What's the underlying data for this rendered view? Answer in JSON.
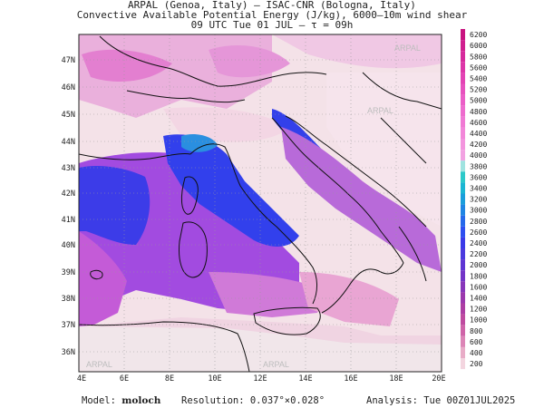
{
  "header": {
    "line1": "ARPAL (Genoa, Italy)  —  ISAC-CNR (Bologna, Italy)",
    "line2": "Convective Available Potential Energy (J/kg), 6000–10m wind shear",
    "line3": "09 UTC Tue 01 JUL  —  τ = 09h"
  },
  "map": {
    "lat_labels": [
      "47N",
      "46N",
      "45N",
      "44N",
      "43N",
      "42N",
      "41N",
      "40N",
      "39N",
      "38N",
      "37N",
      "36N"
    ],
    "lon_labels": [
      "4E",
      "6E",
      "8E",
      "10E",
      "12E",
      "14E",
      "16E",
      "18E",
      "20E"
    ],
    "watermark": "ARPAL"
  },
  "colorbar": {
    "labels": [
      "6200",
      "6000",
      "5800",
      "5600",
      "5400",
      "5200",
      "5000",
      "4800",
      "4600",
      "4400",
      "4200",
      "4000",
      "3800",
      "3600",
      "3400",
      "3200",
      "3000",
      "2800",
      "2600",
      "2400",
      "2200",
      "2000",
      "1800",
      "1600",
      "1400",
      "1200",
      "1000",
      "800",
      "600",
      "400",
      "200"
    ],
    "colors": [
      "#c8137f",
      "#d01f8f",
      "#d62a9c",
      "#dd36a8",
      "#e343b4",
      "#e751be",
      "#eb5ec7",
      "#ee6cce",
      "#f07ad4",
      "#f287d9",
      "#f395de",
      "#f2a2e2",
      "#9fe3e0",
      "#2cc9c9",
      "#1bb6d3",
      "#1a9edb",
      "#1f85e3",
      "#2669ea",
      "#2e4ff0",
      "#3a3ae8",
      "#4b3ade",
      "#5d35d3",
      "#7234c7",
      "#8736ba",
      "#9b38ad",
      "#ad3ea3",
      "#bf4b9f",
      "#cf64a8",
      "#dc85b6",
      "#e8acc7",
      "#f3d5df"
    ]
  },
  "footer": {
    "model_label": "Model:",
    "model_value": "moloch",
    "resolution": "Resolution: 0.037°×0.028°",
    "analysis": "Analysis: Tue 00Z01JUL2025"
  }
}
